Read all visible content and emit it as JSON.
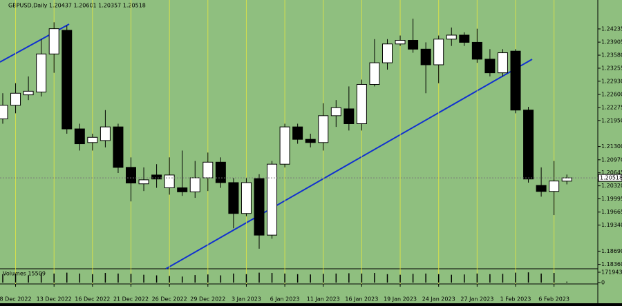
{
  "chart_data": {
    "type": "candlestick",
    "title": "GBPUSD,Daily  1.20437 1.20601 1.20357 1.20518",
    "volume_title": "Volumes 15509",
    "categories": [
      null,
      "8 Dec 2022",
      null,
      null,
      "13 Dec 2022",
      null,
      null,
      "16 Dec 2022",
      null,
      null,
      "21 Dec 2022",
      null,
      null,
      "26 Dec 2022",
      null,
      null,
      "29 Dec 2022",
      null,
      null,
      "3 Jan 2023",
      null,
      null,
      "6 Jan 2023",
      null,
      null,
      "11 Jan 2023",
      null,
      null,
      "16 Jan 2023",
      null,
      null,
      "19 Jan 2023",
      null,
      null,
      "24 Jan 2023",
      null,
      null,
      "27 Jan 2023",
      null,
      null,
      "1 Feb 2023",
      null,
      null,
      "6 Feb 2023",
      null
    ],
    "open": [
      1.2199,
      1.2233,
      1.2259,
      1.2266,
      1.2361,
      1.242,
      1.2174,
      1.214,
      1.2145,
      1.2179,
      1.2078,
      1.2037,
      1.2059,
      1.2027,
      1.2027,
      1.2017,
      1.2052,
      1.2091,
      1.204,
      1.1963,
      1.205,
      1.1909,
      1.2086,
      1.2179,
      1.2148,
      1.214,
      1.2207,
      1.2224,
      1.2187,
      1.2285,
      1.2339,
      1.2386,
      1.2395,
      1.2373,
      1.2334,
      1.2398,
      1.2408,
      1.239,
      1.2348,
      1.2314,
      1.2368,
      1.2221,
      1.2033,
      1.2018,
      1.20437
    ],
    "high": [
      1.2263,
      1.2288,
      1.2305,
      1.2398,
      1.244,
      1.2432,
      1.2187,
      1.2162,
      1.2221,
      1.2187,
      1.2103,
      1.2078,
      1.2086,
      1.2103,
      1.212,
      1.2094,
      1.2115,
      1.2103,
      1.2052,
      1.2052,
      1.2061,
      1.2094,
      1.2187,
      1.2187,
      1.2162,
      1.2238,
      1.2246,
      1.228,
      1.2297,
      1.2398,
      1.2398,
      1.2407,
      1.2449,
      1.239,
      1.2407,
      1.2427,
      1.2415,
      1.2424,
      1.2373,
      1.2373,
      1.2373,
      1.2229,
      1.2078,
      1.2094,
      1.20601
    ],
    "low": [
      1.2187,
      1.2213,
      1.2246,
      1.2255,
      1.2314,
      1.2162,
      1.212,
      1.212,
      1.2128,
      1.2064,
      1.1993,
      1.2019,
      1.2027,
      1.201,
      1.2007,
      1.2002,
      1.2019,
      1.2027,
      1.1926,
      1.1956,
      1.1875,
      1.19,
      1.2078,
      1.2137,
      1.2128,
      1.212,
      1.2179,
      1.217,
      1.217,
      1.228,
      1.2322,
      1.2381,
      1.2364,
      1.2263,
      1.2288,
      1.2381,
      1.2381,
      1.2339,
      1.2305,
      1.2305,
      1.2213,
      1.204,
      1.2005,
      1.1959,
      1.20357
    ],
    "close": [
      1.2233,
      1.2263,
      1.2268,
      1.2361,
      1.2424,
      1.2174,
      1.2137,
      1.2153,
      1.2179,
      1.2078,
      1.2039,
      1.2047,
      1.2049,
      1.2059,
      1.2017,
      1.2052,
      1.2091,
      1.204,
      1.1963,
      1.204,
      1.1909,
      1.2086,
      1.2179,
      1.2148,
      1.214,
      1.2207,
      1.2227,
      1.2187,
      1.2285,
      1.2339,
      1.2386,
      1.2395,
      1.2373,
      1.2334,
      1.2398,
      1.2408,
      1.239,
      1.2348,
      1.2314,
      1.2364,
      1.2221,
      1.2049,
      1.2018,
      1.2044,
      1.20518
    ],
    "volumes": [
      140000,
      150000,
      120000,
      160000,
      150000,
      165000,
      150000,
      140000,
      160000,
      150000,
      145000,
      130000,
      120000,
      110000,
      100000,
      125000,
      135000,
      120000,
      150000,
      140000,
      165000,
      160000,
      150000,
      140000,
      135000,
      145000,
      150000,
      155000,
      150000,
      160000,
      140000,
      130000,
      145000,
      150000,
      140000,
      130000,
      135000,
      150000,
      140000,
      145000,
      165000,
      170000,
      150000,
      160000,
      15509
    ],
    "ylim": [
      1.1825,
      1.2475
    ],
    "yticks": [
      1.24235,
      1.23905,
      {
        "value": 1.2358,
        "label": "1.23580"
      },
      1.23255,
      {
        "value": 1.2293,
        "label": "1.22930"
      },
      {
        "value": 1.226,
        "label": "1.22600"
      },
      1.22275,
      {
        "value": 1.2195,
        "label": "1.21950"
      },
      {
        "value": 1.213,
        "label": "1.21300"
      },
      {
        "value": 1.2097,
        "label": "1.20970"
      },
      1.20645,
      {
        "value": 1.2032,
        "label": "1.20320"
      },
      1.19995,
      1.19665,
      {
        "value": 1.1934,
        "label": "1.19340"
      },
      {
        "value": 1.1869,
        "label": "1.18690"
      },
      {
        "value": 1.1836,
        "label": "1.18360"
      }
    ],
    "current_price": 1.20518,
    "volume_lim": [
      0,
      171943
    ],
    "volume_ticks": [
      171943,
      0
    ],
    "up_color": "#ffffff",
    "down_color": "#000000",
    "background": "#8fbf7f"
  }
}
